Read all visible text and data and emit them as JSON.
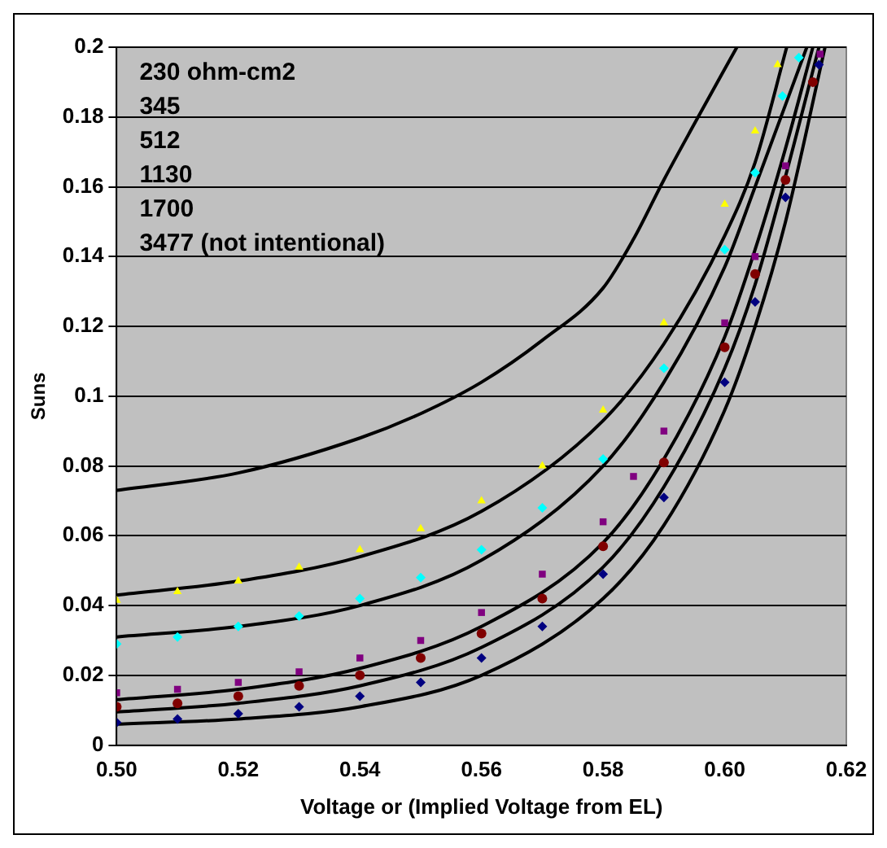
{
  "chart_data": {
    "type": "line",
    "xlabel": "Voltage or (Implied Voltage from EL)",
    "ylabel": "Suns",
    "xlim": [
      0.5,
      0.62
    ],
    "xticks": [
      {
        "value": 0.5,
        "label": "0.50"
      },
      {
        "value": 0.52,
        "label": "0.52"
      },
      {
        "value": 0.54,
        "label": "0.54"
      },
      {
        "value": 0.56,
        "label": "0.56"
      },
      {
        "value": 0.58,
        "label": "0.58"
      },
      {
        "value": 0.6,
        "label": "0.60"
      },
      {
        "value": 0.62,
        "label": "0.62"
      }
    ],
    "ylim": [
      0,
      0.2
    ],
    "yticks": [
      0,
      0.02,
      0.04,
      0.06,
      0.08,
      0.1,
      0.12,
      0.14,
      0.16,
      0.18,
      0.2
    ],
    "grid": "y",
    "legend": false,
    "annotations": [
      "230 ohm-cm2",
      "345",
      "512",
      "1130",
      "1700",
      "3477 (not intentional)"
    ],
    "series": [
      {
        "type": "line",
        "color": "#000000",
        "marker": "none",
        "x": [
          0.5,
          0.52,
          0.54,
          0.55,
          0.56,
          0.57,
          0.58,
          0.585,
          0.59,
          0.595,
          0.602
        ],
        "values": [
          0.073,
          0.078,
          0.088,
          0.095,
          0.104,
          0.116,
          0.131,
          0.145,
          0.162,
          0.178,
          0.2
        ]
      },
      {
        "type": "line",
        "color": "#000000",
        "marker": "none",
        "x": [
          0.5,
          0.52,
          0.54,
          0.56,
          0.58,
          0.59,
          0.6,
          0.605,
          0.6102
        ],
        "values": [
          0.043,
          0.047,
          0.054,
          0.067,
          0.093,
          0.115,
          0.146,
          0.167,
          0.2
        ]
      },
      {
        "type": "line",
        "color": "#000000",
        "marker": "none",
        "x": [
          0.5,
          0.52,
          0.54,
          0.56,
          0.58,
          0.59,
          0.6,
          0.605,
          0.6135
        ],
        "values": [
          0.031,
          0.034,
          0.04,
          0.053,
          0.08,
          0.104,
          0.137,
          0.16,
          0.2
        ]
      },
      {
        "type": "line",
        "color": "#000000",
        "marker": "none",
        "x": [
          0.5,
          0.52,
          0.54,
          0.56,
          0.58,
          0.59,
          0.6,
          0.605,
          0.61,
          0.6145
        ],
        "values": [
          0.013,
          0.016,
          0.022,
          0.034,
          0.058,
          0.082,
          0.117,
          0.142,
          0.171,
          0.2
        ]
      },
      {
        "type": "line",
        "color": "#000000",
        "marker": "none",
        "x": [
          0.5,
          0.52,
          0.54,
          0.56,
          0.58,
          0.59,
          0.6,
          0.605,
          0.61,
          0.6155
        ],
        "values": [
          0.0095,
          0.012,
          0.017,
          0.028,
          0.051,
          0.074,
          0.108,
          0.132,
          0.163,
          0.2
        ]
      },
      {
        "type": "line",
        "color": "#000000",
        "marker": "none",
        "x": [
          0.5,
          0.52,
          0.54,
          0.56,
          0.58,
          0.59,
          0.6,
          0.605,
          0.61,
          0.6165
        ],
        "values": [
          0.006,
          0.0075,
          0.011,
          0.02,
          0.042,
          0.063,
          0.096,
          0.12,
          0.15,
          0.2
        ]
      },
      {
        "type": "scatter",
        "color": "#ffff00",
        "marker": "triangle",
        "x": [
          0.5,
          0.51,
          0.52,
          0.53,
          0.54,
          0.55,
          0.56,
          0.57,
          0.58,
          0.59,
          0.6,
          0.605,
          0.6087
        ],
        "values": [
          0.0415,
          0.044,
          0.047,
          0.051,
          0.056,
          0.062,
          0.07,
          0.08,
          0.096,
          0.121,
          0.155,
          0.176,
          0.195
        ]
      },
      {
        "type": "scatter",
        "color": "#00ffff",
        "marker": "diamond",
        "x": [
          0.5,
          0.51,
          0.52,
          0.53,
          0.54,
          0.55,
          0.56,
          0.57,
          0.58,
          0.59,
          0.6,
          0.605,
          0.6095,
          0.6122
        ],
        "values": [
          0.029,
          0.031,
          0.034,
          0.037,
          0.042,
          0.048,
          0.056,
          0.068,
          0.082,
          0.108,
          0.142,
          0.164,
          0.186,
          0.197
        ]
      },
      {
        "type": "scatter",
        "color": "#800080",
        "marker": "square",
        "x": [
          0.5,
          0.51,
          0.52,
          0.53,
          0.54,
          0.55,
          0.56,
          0.57,
          0.58,
          0.585,
          0.59,
          0.6,
          0.605,
          0.61,
          0.6157
        ],
        "values": [
          0.015,
          0.016,
          0.018,
          0.021,
          0.025,
          0.03,
          0.038,
          0.049,
          0.064,
          0.077,
          0.09,
          0.121,
          0.14,
          0.166,
          0.198
        ]
      },
      {
        "type": "scatter",
        "color": "#800000",
        "marker": "circle",
        "x": [
          0.5,
          0.51,
          0.52,
          0.53,
          0.54,
          0.55,
          0.56,
          0.57,
          0.58,
          0.59,
          0.6,
          0.605,
          0.61,
          0.6145
        ],
        "values": [
          0.011,
          0.012,
          0.014,
          0.017,
          0.02,
          0.025,
          0.032,
          0.042,
          0.057,
          0.081,
          0.114,
          0.135,
          0.162,
          0.19
        ]
      },
      {
        "type": "scatter",
        "color": "#000080",
        "marker": "diamond",
        "x": [
          0.5,
          0.51,
          0.52,
          0.53,
          0.54,
          0.55,
          0.56,
          0.57,
          0.58,
          0.59,
          0.6,
          0.605,
          0.61,
          0.6155
        ],
        "values": [
          0.0065,
          0.0075,
          0.009,
          0.011,
          0.014,
          0.018,
          0.025,
          0.034,
          0.049,
          0.071,
          0.104,
          0.127,
          0.157,
          0.195
        ]
      }
    ]
  }
}
